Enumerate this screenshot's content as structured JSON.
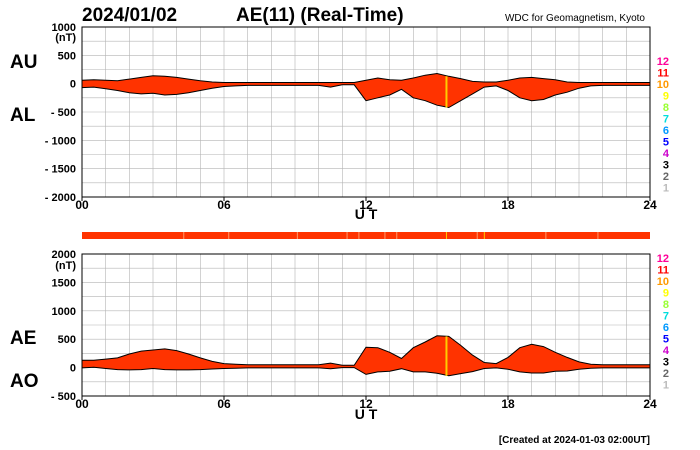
{
  "header": {
    "date": "2024/01/02",
    "title": "AE(11) (Real-Time)",
    "organization": "WDC for Geomagnetism, Kyoto"
  },
  "footer": "[Created at 2024-01-03 02:00UT]",
  "colors": {
    "fill": "#ff3300",
    "line": "#000000",
    "grid": "#b4b4b4",
    "highlight": "#ffcc00"
  },
  "legend": {
    "labels": [
      "12",
      "11",
      "10",
      "9",
      "8",
      "7",
      "6",
      "5",
      "4",
      "3",
      "2",
      "1"
    ],
    "colors": [
      "#ff0099",
      "#ff0000",
      "#ff9900",
      "#ffff00",
      "#99ff33",
      "#00dddd",
      "#0099ff",
      "#0000ff",
      "#cc00cc",
      "#000000",
      "#666666",
      "#bbbbbb"
    ]
  },
  "chart_data": [
    {
      "type": "area",
      "id": "au-al",
      "side_labels": [
        "AU",
        "AL"
      ],
      "unit": "(nT)",
      "xlabel": "U T",
      "xlim": [
        0,
        24
      ],
      "x_ticks": [
        "00",
        "06",
        "12",
        "18",
        "24"
      ],
      "ylim": [
        -2000,
        1000
      ],
      "y_ticks": [
        "1000",
        "500",
        "0",
        "- 500",
        "- 1000",
        "- 1500",
        "- 2000"
      ],
      "highlight_times": [
        15.4
      ],
      "x": [
        0,
        0.5,
        1,
        1.5,
        2,
        2.5,
        3,
        3.5,
        4,
        4.5,
        5,
        5.5,
        6,
        6.5,
        7,
        7.5,
        8,
        8.5,
        9,
        9.5,
        10,
        10.5,
        11,
        11.5,
        12,
        12.5,
        13,
        13.5,
        14,
        14.5,
        15,
        15.5,
        16,
        16.5,
        17,
        17.5,
        18,
        18.5,
        19,
        19.5,
        20,
        20.5,
        21,
        21.5,
        22,
        22.5,
        23,
        23.5,
        24
      ],
      "series": [
        {
          "name": "AU",
          "values": [
            60,
            70,
            60,
            50,
            80,
            110,
            140,
            130,
            110,
            80,
            50,
            30,
            20,
            20,
            20,
            20,
            20,
            20,
            20,
            20,
            20,
            20,
            20,
            20,
            60,
            100,
            70,
            60,
            100,
            150,
            180,
            130,
            90,
            40,
            30,
            30,
            60,
            100,
            110,
            90,
            70,
            30,
            20,
            20,
            20,
            20,
            20,
            20,
            20
          ]
        },
        {
          "name": "AL",
          "values": [
            -70,
            -60,
            -90,
            -120,
            -160,
            -180,
            -170,
            -200,
            -190,
            -160,
            -120,
            -80,
            -50,
            -40,
            -30,
            -30,
            -30,
            -30,
            -30,
            -30,
            -30,
            -60,
            -20,
            -20,
            -300,
            -250,
            -200,
            -100,
            -250,
            -300,
            -380,
            -420,
            -300,
            -180,
            -60,
            -40,
            -120,
            -250,
            -300,
            -280,
            -200,
            -150,
            -80,
            -40,
            -30,
            -30,
            -30,
            -30,
            -30
          ]
        }
      ]
    },
    {
      "type": "area",
      "id": "ae-ao",
      "side_labels": [
        "AE",
        "AO"
      ],
      "unit": "(nT)",
      "xlabel": "U T",
      "xlim": [
        0,
        24
      ],
      "x_ticks": [
        "00",
        "06",
        "12",
        "18",
        "24"
      ],
      "ylim": [
        -500,
        2000
      ],
      "y_ticks": [
        "2000",
        "1500",
        "1000",
        "500",
        "0",
        "- 500"
      ],
      "highlight_times": [
        15.4
      ],
      "x": [
        0,
        0.5,
        1,
        1.5,
        2,
        2.5,
        3,
        3.5,
        4,
        4.5,
        5,
        5.5,
        6,
        6.5,
        7,
        7.5,
        8,
        8.5,
        9,
        9.5,
        10,
        10.5,
        11,
        11.5,
        12,
        12.5,
        13,
        13.5,
        14,
        14.5,
        15,
        15.5,
        16,
        16.5,
        17,
        17.5,
        18,
        18.5,
        19,
        19.5,
        20,
        20.5,
        21,
        21.5,
        22,
        22.5,
        23,
        23.5,
        24
      ],
      "series": [
        {
          "name": "AE",
          "values": [
            130,
            130,
            150,
            170,
            240,
            290,
            310,
            330,
            300,
            240,
            170,
            110,
            70,
            60,
            50,
            50,
            50,
            50,
            50,
            50,
            50,
            80,
            40,
            40,
            360,
            350,
            270,
            160,
            350,
            450,
            560,
            550,
            390,
            220,
            90,
            70,
            180,
            350,
            410,
            370,
            270,
            180,
            100,
            60,
            50,
            50,
            50,
            50,
            50
          ]
        },
        {
          "name": "AO",
          "values": [
            -5,
            5,
            -15,
            -35,
            -40,
            -35,
            -15,
            -35,
            -40,
            -40,
            -35,
            -25,
            -15,
            -10,
            -5,
            -5,
            -5,
            -5,
            -5,
            -5,
            -5,
            -20,
            0,
            0,
            -120,
            -75,
            -65,
            -20,
            -75,
            -75,
            -100,
            -145,
            -105,
            -70,
            -15,
            -5,
            -30,
            -75,
            -95,
            -95,
            -65,
            -60,
            -30,
            -10,
            -5,
            -5,
            -5,
            -5,
            -5
          ]
        }
      ]
    }
  ]
}
